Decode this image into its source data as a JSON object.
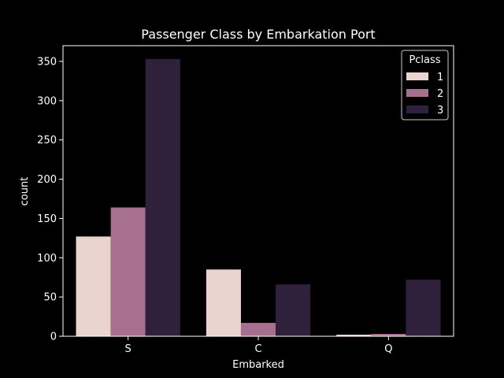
{
  "chart_data": {
    "type": "bar",
    "title": "Passenger Class by Embarkation Port",
    "xlabel": "Embarked",
    "ylabel": "count",
    "categories": [
      "S",
      "C",
      "Q"
    ],
    "ylim": [
      0,
      370
    ],
    "yticks": [
      0,
      50,
      100,
      150,
      200,
      250,
      300,
      350
    ],
    "grid": false,
    "legend": {
      "title": "Pclass",
      "placement": "top-right"
    },
    "series": [
      {
        "name": "1",
        "color": "#ead4d0",
        "values": [
          127,
          85,
          2
        ]
      },
      {
        "name": "2",
        "color": "#a7708f",
        "values": [
          164,
          17,
          3
        ]
      },
      {
        "name": "3",
        "color": "#2f213b",
        "values": [
          353,
          66,
          72
        ]
      }
    ]
  }
}
